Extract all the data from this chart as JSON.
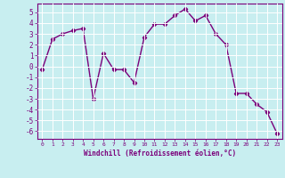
{
  "x": [
    0,
    1,
    2,
    3,
    4,
    5,
    6,
    7,
    8,
    9,
    10,
    11,
    12,
    13,
    14,
    15,
    16,
    17,
    18,
    19,
    20,
    21,
    22,
    23
  ],
  "y": [
    -0.3,
    2.5,
    3.0,
    3.3,
    3.5,
    -3.0,
    1.2,
    -0.3,
    -0.3,
    -1.5,
    2.7,
    3.9,
    3.9,
    4.7,
    5.3,
    4.2,
    4.7,
    3.0,
    2.0,
    -2.5,
    -2.5,
    -3.5,
    -4.2,
    -6.2
  ],
  "line_color": "#7b007b",
  "marker": "D",
  "markersize": 2.2,
  "linewidth": 1.0,
  "xlim": [
    -0.5,
    23.5
  ],
  "ylim": [
    -6.7,
    5.8
  ],
  "yticks": [
    5,
    4,
    3,
    2,
    1,
    0,
    -1,
    -2,
    -3,
    -4,
    -5,
    -6
  ],
  "xticks": [
    0,
    1,
    2,
    3,
    4,
    5,
    6,
    7,
    8,
    9,
    10,
    11,
    12,
    13,
    14,
    15,
    16,
    17,
    18,
    19,
    20,
    21,
    22,
    23
  ],
  "xlabel": "Windchill (Refroidissement éolien,°C)",
  "bg_color": "#c8eef0",
  "grid_color": "#ffffff",
  "label_color": "#7b007b",
  "tick_color": "#7b007b",
  "spine_color": "#7b007b"
}
